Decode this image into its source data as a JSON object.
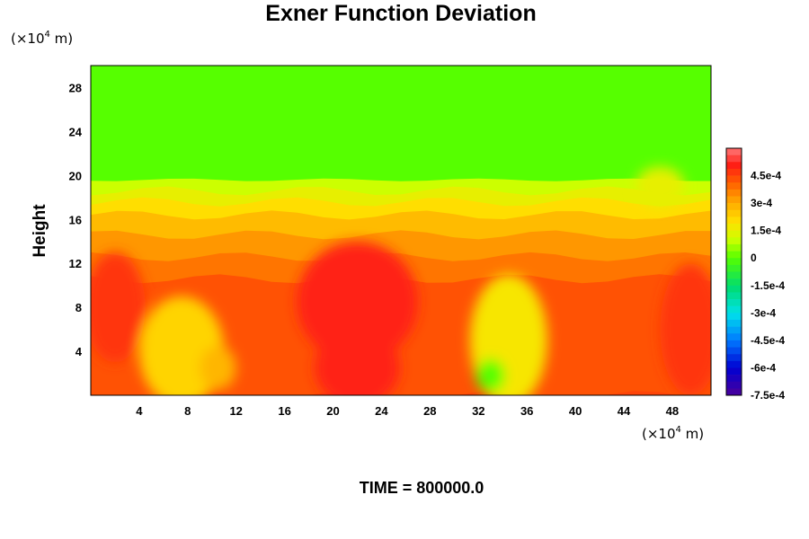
{
  "chart_data": {
    "type": "heatmap",
    "title": "Exner Function Deviation",
    "ylabel": "Height",
    "xlabel": "",
    "x_unit": {
      "prefix": "(×10",
      "exp": "4",
      "suffix": " m)"
    },
    "y_unit": {
      "prefix": "(×10",
      "exp": "4",
      "suffix": " m)"
    },
    "xlim": [
      0,
      51.2
    ],
    "ylim": [
      0,
      30
    ],
    "x_ticks": [
      4,
      8,
      12,
      16,
      20,
      24,
      28,
      32,
      36,
      40,
      44,
      48
    ],
    "y_ticks": [
      4,
      8,
      12,
      16,
      20,
      24,
      28
    ],
    "colorbar": {
      "min": -0.00075,
      "max": 0.0006,
      "tick_values": [
        0.00045,
        0.0003,
        0.00015,
        0,
        -0.00015,
        -0.0003,
        -0.00045,
        -0.0006,
        -0.00075
      ],
      "tick_labels": [
        "4.5e-4",
        "3e-4",
        "1.5e-4",
        "0",
        "-1.5e-4",
        "-3e-4",
        "-4.5e-4",
        "-6e-4",
        "-7.5e-4"
      ]
    },
    "field": {
      "upper_value": 0.0,
      "layers": [
        {
          "y": 20.3,
          "value": 0.0
        },
        {
          "y": 19.6,
          "value": 0.0001
        },
        {
          "y": 18.6,
          "value": 0.00015
        },
        {
          "y": 17.6,
          "value": 0.0002
        },
        {
          "y": 16.4,
          "value": 0.00027
        },
        {
          "y": 14.6,
          "value": 0.00033
        },
        {
          "y": 12.6,
          "value": 0.00038
        },
        {
          "y": 10.6,
          "value": 0.00043
        },
        {
          "y": 0,
          "value": 0.00045
        }
      ],
      "features": [
        {
          "kind": "low",
          "x": 7.5,
          "y": 4.0,
          "rx": 3.5,
          "ry": 5.0,
          "value": 0.00022
        },
        {
          "kind": "low",
          "x": 10.5,
          "y": 2.5,
          "rx": 1.5,
          "ry": 2.0,
          "value": 0.00028
        },
        {
          "kind": "low",
          "x": 34.5,
          "y": 5.0,
          "rx": 3.2,
          "ry": 6.0,
          "value": 0.00018
        },
        {
          "kind": "low",
          "x": 33.0,
          "y": 1.8,
          "rx": 1.2,
          "ry": 1.5,
          "value": 0.0
        },
        {
          "kind": "low",
          "x": 47.0,
          "y": 19.0,
          "rx": 2.0,
          "ry": 1.8,
          "value": 0.00015
        },
        {
          "kind": "high",
          "x": 22.0,
          "y": 8.5,
          "rx": 5.0,
          "ry": 5.5,
          "value": 0.0005
        },
        {
          "kind": "high",
          "x": 22.0,
          "y": 2.5,
          "rx": 3.5,
          "ry": 3.5,
          "value": 0.0005
        },
        {
          "kind": "high",
          "x": 2.0,
          "y": 8.0,
          "rx": 2.5,
          "ry": 5.0,
          "value": 0.00047
        },
        {
          "kind": "high",
          "x": 49.5,
          "y": 6.0,
          "rx": 2.5,
          "ry": 6.0,
          "value": 0.00047
        }
      ]
    }
  },
  "time_label": "TIME = 800000.0"
}
